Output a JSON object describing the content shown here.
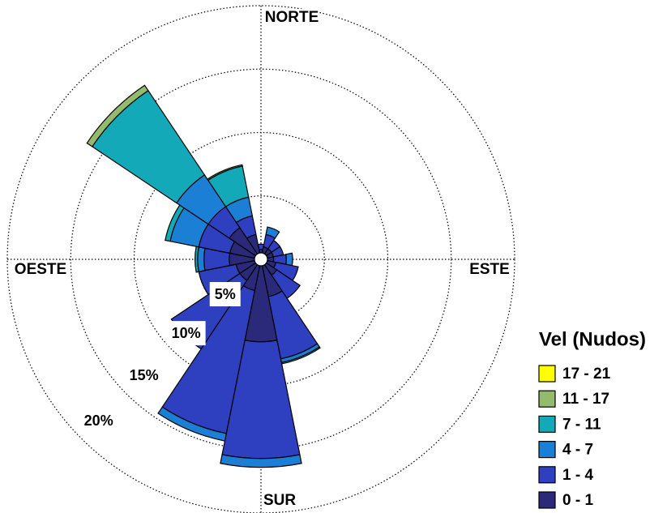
{
  "chart_data": {
    "type": "windrose",
    "categories": [
      "NORTE",
      null,
      null,
      null,
      "ESTE",
      null,
      null,
      null,
      "SUR",
      null,
      null,
      null,
      "OESTE",
      null,
      null,
      null
    ],
    "legend_title": "Vel (Nudos)",
    "rlim": [
      0,
      20
    ],
    "rticks": [
      {
        "value": 5,
        "label": "5%"
      },
      {
        "value": 10,
        "label": "10%"
      },
      {
        "value": 15,
        "label": "15%"
      },
      {
        "value": 20,
        "label": "20%"
      }
    ],
    "series": [
      {
        "name": "17 - 21",
        "color": "#ffff00",
        "values": [
          0,
          0,
          0,
          0,
          0,
          0,
          0,
          0,
          0,
          0,
          0,
          0,
          0,
          0,
          0,
          0
        ]
      },
      {
        "name": "11 - 17",
        "color": "#93bb6b",
        "values": [
          0,
          0,
          0,
          0,
          0,
          0,
          0,
          0,
          0,
          0,
          0,
          0,
          0,
          0,
          0.5,
          0.1
        ]
      },
      {
        "name": "7 - 11",
        "color": "#14a9b8",
        "values": [
          0,
          0,
          0,
          0,
          0,
          0,
          0,
          0.1,
          0,
          0,
          0,
          0,
          0.2,
          0.4,
          8,
          2.5
        ]
      },
      {
        "name": "4 - 7",
        "color": "#1b7fd6",
        "values": [
          0,
          0.6,
          0,
          0,
          0.5,
          0,
          0,
          0.3,
          0.7,
          0.6,
          0,
          0,
          0.5,
          2.3,
          3,
          1.5
        ]
      },
      {
        "name": "1 - 4",
        "color": "#2e3fbf",
        "values": [
          0.4,
          1,
          0.8,
          0.8,
          1,
          1.8,
          2.2,
          5,
          9.2,
          11.5,
          6.5,
          3,
          2,
          2.5,
          2,
          1.5
        ]
      },
      {
        "name": "0 - 1",
        "color": "#2b2a7a",
        "values": [
          0.8,
          1,
          1,
          1,
          1,
          1.2,
          1.5,
          3,
          6.5,
          2.5,
          2,
          2,
          2.5,
          2.5,
          3,
          2
        ]
      }
    ]
  }
}
